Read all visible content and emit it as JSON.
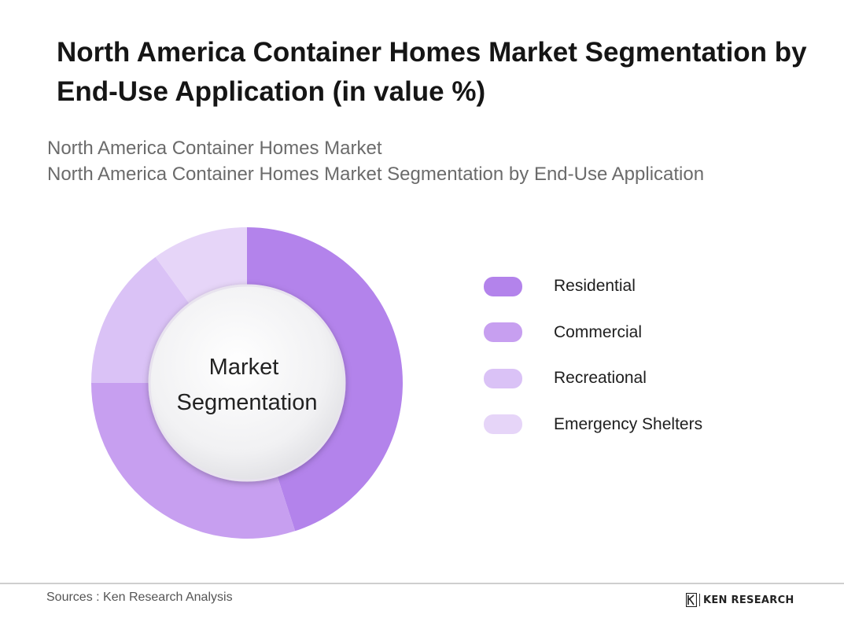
{
  "title": "North America Container Homes Market Segmentation by End-Use Application (in value %)",
  "subtitle_lines": [
    "North America Container Homes Market",
    "North America Container Homes Market Segmentation by End-Use Application"
  ],
  "chart_data": {
    "type": "pie",
    "style": "donut",
    "center_label": [
      "Market",
      "Segmentation"
    ],
    "categories": [
      "Residential",
      "Commercial",
      "Recreational",
      "Emergency Shelters"
    ],
    "values": [
      45,
      30,
      15,
      10
    ],
    "colors": [
      "#b383eb",
      "#c79ff0",
      "#dac2f6",
      "#e6d5f8"
    ],
    "legend_position": "right"
  },
  "footer": {
    "source": "Sources : Ken Research Analysis",
    "brand": "KEN RESEARCH"
  }
}
